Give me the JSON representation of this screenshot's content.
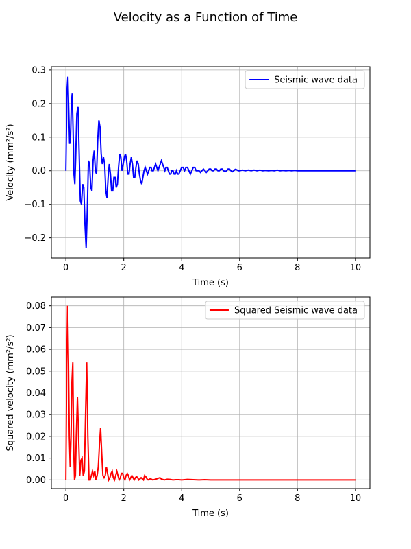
{
  "figure": {
    "title": "Velocity as a Function of Time"
  },
  "chart_data": [
    {
      "type": "line",
      "title": "",
      "xlabel": "Time (s)",
      "ylabel": "Velocity (mm²/s²)",
      "xlim": [
        -0.5,
        10.5
      ],
      "ylim": [
        -0.26,
        0.31
      ],
      "xticks": [
        0,
        2,
        4,
        6,
        8,
        10
      ],
      "xtick_labels": [
        "0",
        "2",
        "4",
        "6",
        "8",
        "10"
      ],
      "yticks": [
        -0.2,
        -0.1,
        0.0,
        0.1,
        0.2,
        0.3
      ],
      "ytick_labels": [
        "−0.2",
        "−0.1",
        "0.0",
        "0.1",
        "0.2",
        "0.3"
      ],
      "grid": true,
      "legend": "top-right",
      "series": [
        {
          "name": "Seismic wave data",
          "color": "#0000ff",
          "x": [
            0,
            0.04,
            0.07,
            0.1,
            0.13,
            0.16,
            0.19,
            0.22,
            0.25,
            0.28,
            0.31,
            0.34,
            0.38,
            0.42,
            0.46,
            0.5,
            0.54,
            0.58,
            0.62,
            0.66,
            0.7,
            0.74,
            0.78,
            0.82,
            0.86,
            0.9,
            0.94,
            0.98,
            1.02,
            1.06,
            1.1,
            1.14,
            1.18,
            1.22,
            1.26,
            1.3,
            1.34,
            1.38,
            1.42,
            1.46,
            1.5,
            1.54,
            1.58,
            1.62,
            1.66,
            1.7,
            1.74,
            1.78,
            1.82,
            1.86,
            1.9,
            1.94,
            1.98,
            2.02,
            2.06,
            2.1,
            2.14,
            2.18,
            2.22,
            2.26,
            2.3,
            2.34,
            2.38,
            2.42,
            2.46,
            2.5,
            2.54,
            2.58,
            2.62,
            2.66,
            2.7,
            2.74,
            2.78,
            2.82,
            2.86,
            2.9,
            2.94,
            2.98,
            3.02,
            3.06,
            3.1,
            3.14,
            3.18,
            3.22,
            3.26,
            3.3,
            3.34,
            3.38,
            3.42,
            3.46,
            3.5,
            3.54,
            3.58,
            3.62,
            3.66,
            3.7,
            3.74,
            3.78,
            3.82,
            3.86,
            3.9,
            3.95,
            4.0,
            4.05,
            4.1,
            4.15,
            4.2,
            4.25,
            4.3,
            4.35,
            4.4,
            4.45,
            4.5,
            4.55,
            4.6,
            4.65,
            4.7,
            4.75,
            4.8,
            4.85,
            4.9,
            4.95,
            5.0,
            5.05,
            5.1,
            5.15,
            5.2,
            5.25,
            5.3,
            5.35,
            5.4,
            5.45,
            5.5,
            5.55,
            5.6,
            5.65,
            5.7,
            5.75,
            5.8,
            5.85,
            5.9,
            5.95,
            6.0,
            6.1,
            6.2,
            6.3,
            6.4,
            6.5,
            6.6,
            6.7,
            6.8,
            6.9,
            7.0,
            7.1,
            7.2,
            7.3,
            7.4,
            7.5,
            7.6,
            7.7,
            7.8,
            7.9,
            8.0,
            8.5,
            9.0,
            9.5,
            10.0
          ],
          "y": [
            0.0,
            0.24,
            0.28,
            0.18,
            0.08,
            0.09,
            0.2,
            0.23,
            0.12,
            -0.01,
            -0.04,
            0.04,
            0.17,
            0.19,
            0.05,
            -0.09,
            -0.1,
            -0.04,
            -0.05,
            -0.16,
            -0.23,
            -0.12,
            0.03,
            0.02,
            -0.05,
            -0.06,
            0.03,
            0.06,
            0.0,
            -0.01,
            0.09,
            0.15,
            0.13,
            0.05,
            0.02,
            0.04,
            0.02,
            -0.06,
            -0.08,
            -0.02,
            0.02,
            -0.01,
            -0.06,
            -0.06,
            -0.02,
            -0.02,
            -0.05,
            -0.04,
            0.01,
            0.05,
            0.04,
            0.0,
            0.02,
            0.04,
            0.05,
            0.03,
            -0.01,
            -0.01,
            0.02,
            0.04,
            0.02,
            -0.02,
            -0.02,
            0.01,
            0.03,
            0.02,
            -0.01,
            -0.03,
            -0.04,
            -0.02,
            0.0,
            0.01,
            0.0,
            -0.01,
            0.0,
            0.01,
            0.01,
            0.0,
            0.0,
            0.01,
            0.02,
            0.01,
            0.0,
            0.01,
            0.02,
            0.03,
            0.02,
            0.01,
            0.0,
            0.01,
            0.01,
            0.0,
            -0.01,
            -0.01,
            0.0,
            0.0,
            -0.01,
            -0.01,
            0.0,
            -0.01,
            -0.01,
            0.0,
            0.01,
            0.01,
            0.0,
            0.01,
            0.01,
            0.0,
            -0.01,
            0.0,
            0.01,
            0.01,
            0.0,
            0.0,
            0.0,
            -0.005,
            0.0,
            0.005,
            0.0,
            -0.005,
            0.0,
            0.005,
            0.005,
            0.0,
            0.0,
            0.005,
            0.005,
            0.0,
            0.0,
            0.005,
            0.005,
            0.0,
            -0.003,
            0.0,
            0.005,
            0.005,
            0.0,
            -0.003,
            0.0,
            0.004,
            0.003,
            0.0,
            0.0,
            0.002,
            0.0,
            0.002,
            0.0,
            0.002,
            0.0,
            0.002,
            0.0,
            0.001,
            0.0,
            0.001,
            0.0,
            0.002,
            0.0,
            0.001,
            0.0,
            0.001,
            0.0,
            0.001,
            0.0,
            0.0,
            0.0,
            0.0,
            0.0
          ]
        }
      ]
    },
    {
      "type": "line",
      "title": "",
      "xlabel": "Time (s)",
      "ylabel": "Squared velocity (mm²/s²)",
      "xlim": [
        -0.5,
        10.5
      ],
      "ylim": [
        -0.004,
        0.084
      ],
      "xticks": [
        0,
        2,
        4,
        6,
        8,
        10
      ],
      "xtick_labels": [
        "0",
        "2",
        "4",
        "6",
        "8",
        "10"
      ],
      "yticks": [
        0.0,
        0.01,
        0.02,
        0.03,
        0.04,
        0.05,
        0.06,
        0.07,
        0.08
      ],
      "ytick_labels": [
        "0.00",
        "0.01",
        "0.02",
        "0.03",
        "0.04",
        "0.05",
        "0.06",
        "0.07",
        "0.08"
      ],
      "grid": true,
      "legend": "top-right",
      "series": [
        {
          "name": "Squared Seismic wave data",
          "color": "#ff0000",
          "x": [
            0,
            0.03,
            0.06,
            0.09,
            0.12,
            0.15,
            0.18,
            0.21,
            0.24,
            0.27,
            0.3,
            0.33,
            0.36,
            0.4,
            0.44,
            0.48,
            0.52,
            0.56,
            0.6,
            0.64,
            0.68,
            0.72,
            0.76,
            0.8,
            0.84,
            0.88,
            0.92,
            0.96,
            1.0,
            1.04,
            1.08,
            1.12,
            1.16,
            1.2,
            1.24,
            1.28,
            1.32,
            1.36,
            1.4,
            1.44,
            1.48,
            1.52,
            1.56,
            1.6,
            1.64,
            1.68,
            1.72,
            1.76,
            1.8,
            1.84,
            1.88,
            1.92,
            1.96,
            2.0,
            2.04,
            2.08,
            2.12,
            2.16,
            2.2,
            2.24,
            2.28,
            2.32,
            2.36,
            2.4,
            2.44,
            2.48,
            2.52,
            2.56,
            2.6,
            2.64,
            2.68,
            2.72,
            2.76,
            2.8,
            2.84,
            2.88,
            2.92,
            2.96,
            3.0,
            3.1,
            3.2,
            3.25,
            3.3,
            3.4,
            3.5,
            3.6,
            3.7,
            3.8,
            3.9,
            4.0,
            4.2,
            4.4,
            4.6,
            4.8,
            5.0,
            5.5,
            6.0,
            7.0,
            8.0,
            9.0,
            10.0
          ],
          "y": [
            0.0,
            0.05,
            0.08,
            0.055,
            0.02,
            0.006,
            0.02,
            0.045,
            0.054,
            0.015,
            0.0,
            0.002,
            0.02,
            0.038,
            0.02,
            0.002,
            0.009,
            0.01,
            0.002,
            0.004,
            0.03,
            0.054,
            0.02,
            0.0,
            0.0,
            0.002,
            0.004,
            0.002,
            0.004,
            0.0,
            0.002,
            0.006,
            0.016,
            0.024,
            0.012,
            0.002,
            0.001,
            0.002,
            0.006,
            0.003,
            0.0,
            0.001,
            0.003,
            0.004,
            0.001,
            0.0,
            0.002,
            0.004,
            0.002,
            0.0,
            0.001,
            0.003,
            0.003,
            0.001,
            0.0,
            0.002,
            0.003,
            0.002,
            0.0,
            0.001,
            0.002,
            0.001,
            0.0,
            0.001,
            0.0015,
            0.001,
            0.0,
            0.0005,
            0.001,
            0.0005,
            0.0,
            0.002,
            0.0015,
            0.0005,
            0.0,
            0.0003,
            0.0005,
            0.0003,
            0.0,
            0.0003,
            0.0008,
            0.001,
            0.0004,
            0.0,
            0.0003,
            0.0002,
            0.0,
            0.0001,
            0.0001,
            0.0,
            0.0002,
            0.0001,
            0.0,
            0.0001,
            0.0,
            0.0,
            0.0,
            0.0,
            0.0,
            0.0,
            0.0
          ]
        }
      ]
    }
  ]
}
